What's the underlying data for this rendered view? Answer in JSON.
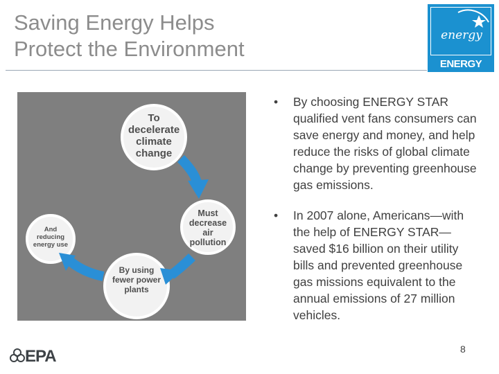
{
  "slide": {
    "title_line1": "Saving Energy Helps",
    "title_line2": "Protect the Environment",
    "page_number": "8"
  },
  "logo": {
    "wordmark": "energy",
    "label": "ENERGY STAR"
  },
  "cycle": {
    "step1": "To decelerate climate change",
    "step2": "Must decrease air pollution",
    "step3": "By using fewer power plants",
    "step4": "And reducing energy use"
  },
  "bullets": [
    {
      "marker": "•",
      "text": "By choosing ENERGY STAR qualified vent fans consumers can save energy and money, and help reduce the risks of global climate change by preventing greenhouse gas emissions."
    },
    {
      "marker": "•",
      "text": "In 2007 alone, Americans—with the help of ENERGY STAR—saved $16 billion on their utility bills and prevented greenhouse gas missions equivalent to the annual emissions of 27 million vehicles."
    }
  ],
  "footer": {
    "agency_logo": "EPA"
  },
  "colors": {
    "title": "#8c8c8c",
    "logo_blue": "#1b91d0",
    "arrow_blue": "#2a8fd6",
    "diagram_bg": "#7f7f7f",
    "body_text": "#404040"
  }
}
